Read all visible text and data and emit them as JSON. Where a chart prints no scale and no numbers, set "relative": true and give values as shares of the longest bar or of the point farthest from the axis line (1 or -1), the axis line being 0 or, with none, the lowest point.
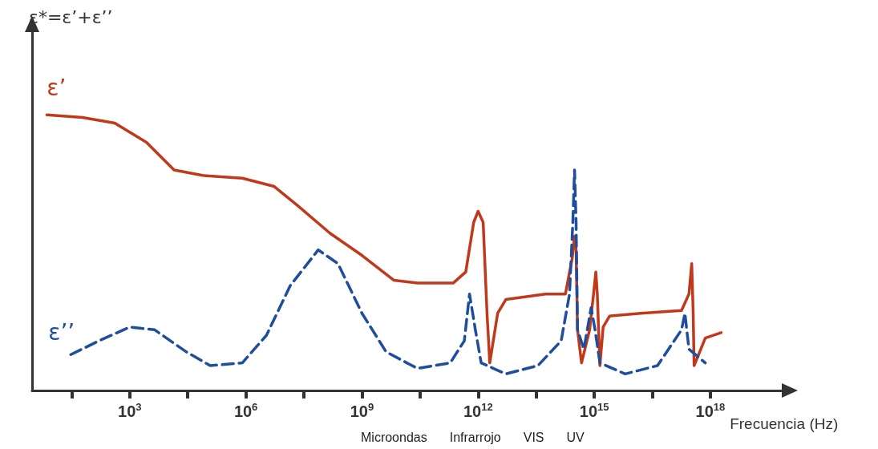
{
  "chart_data": {
    "type": "line",
    "relative": true,
    "log": "x",
    "ylabel": "ε*=ε’+ε’’",
    "xlabel": "Frecuencia (Hz)",
    "marker": "none",
    "grid": false,
    "xlim": [
      3,
      7e+19
    ],
    "xticks": [
      {
        "value": 31.6,
        "label": null
      },
      {
        "value": 1000.0,
        "label": "10$^{3}$"
      },
      {
        "value": 31600,
        "label": null
      },
      {
        "value": 1000000.0,
        "label": "10$^{6}$"
      },
      {
        "value": 31600000.0,
        "label": null
      },
      {
        "value": 1000000000.0,
        "label": "10$^{9}$"
      },
      {
        "value": 31600000000.0,
        "label": null
      },
      {
        "value": 1000000000000.0,
        "label": "10$^{12}$"
      },
      {
        "value": 31600000000000.0,
        "label": null
      },
      {
        "value": 1000000000000000.0,
        "label": "10$^{15}$"
      },
      {
        "value": 3.16e+16,
        "label": null
      },
      {
        "value": 1e+18,
        "label": "10$^{18}$"
      }
    ],
    "annotations": [
      "Microondas",
      "Infrarrojo",
      "VIS",
      "UV"
    ],
    "series": [
      {
        "name": "ε’",
        "color": "#c0391b",
        "line_style": "solid",
        "x": [
          7.2,
          60,
          410,
          2700,
          14000,
          76000,
          810000,
          5400000.0,
          22000000.0,
          150000000.0,
          1000000000.0,
          6600000000.0,
          27000000000.0,
          230000000000.0,
          480000000000.0,
          770000000000.0,
          1000000000000.0,
          1350000000000.0,
          1700000000000.0,
          2000000000000.0,
          3200000000000.0,
          5200000000000.0,
          55000000000000.0,
          180000000000000.0,
          270000000000000.0,
          310000000000000.0,
          340000000000000.0,
          370000000000000.0,
          470000000000000.0,
          760000000000000.0,
          960000000000000.0,
          1100000000000000.0,
          1200000000000000.0,
          1400000000000000.0,
          1700000000000000.0,
          2500000000000000.0,
          1.6e+16,
          1.8e+17,
          2.8e+17,
          3.3e+17,
          3.6e+17,
          3.8e+17,
          7.4e+17,
          1.9e+18
        ],
        "values": [
          1.0,
          0.99,
          0.97,
          0.9,
          0.8,
          0.78,
          0.77,
          0.74,
          0.67,
          0.57,
          0.49,
          0.4,
          0.39,
          0.39,
          0.43,
          0.61,
          0.65,
          0.61,
          0.28,
          0.1,
          0.28,
          0.33,
          0.35,
          0.35,
          0.48,
          0.56,
          0.51,
          0.22,
          0.1,
          0.22,
          0.35,
          0.43,
          0.35,
          0.09,
          0.23,
          0.27,
          0.28,
          0.29,
          0.35,
          0.46,
          0.28,
          0.09,
          0.19,
          0.21
        ]
      },
      {
        "name": "ε’’",
        "color": "#1f4e9c",
        "line_style": "dashed",
        "x": [
          30,
          160,
          1000,
          4400,
          29000,
          120000,
          810000,
          3400000.0,
          14000000.0,
          74000000.0,
          240000000.0,
          1000000000.0,
          4200000000.0,
          27000000000.0,
          190000000000.0,
          440000000000.0,
          600000000000.0,
          850000000000.0,
          1200000000000.0,
          5200000000000.0,
          35000000000000.0,
          140000000000000.0,
          230000000000000.0,
          280000000000000.0,
          310000000000000.0,
          340000000000000.0,
          370000000000000.0,
          540000000000000.0,
          830000000000000.0,
          1050000000000000.0,
          1400000000000000.0,
          6300000000000000.0,
          4.3e+16,
          1.8e+17,
          2.2e+17,
          2.8e+17,
          7.4e+17
        ],
        "values": [
          0.13,
          0.18,
          0.23,
          0.22,
          0.14,
          0.09,
          0.1,
          0.2,
          0.38,
          0.51,
          0.46,
          0.28,
          0.14,
          0.08,
          0.1,
          0.18,
          0.35,
          0.22,
          0.1,
          0.06,
          0.09,
          0.18,
          0.35,
          0.61,
          0.8,
          0.61,
          0.22,
          0.15,
          0.3,
          0.22,
          0.1,
          0.06,
          0.09,
          0.22,
          0.28,
          0.15,
          0.1
        ]
      }
    ]
  }
}
